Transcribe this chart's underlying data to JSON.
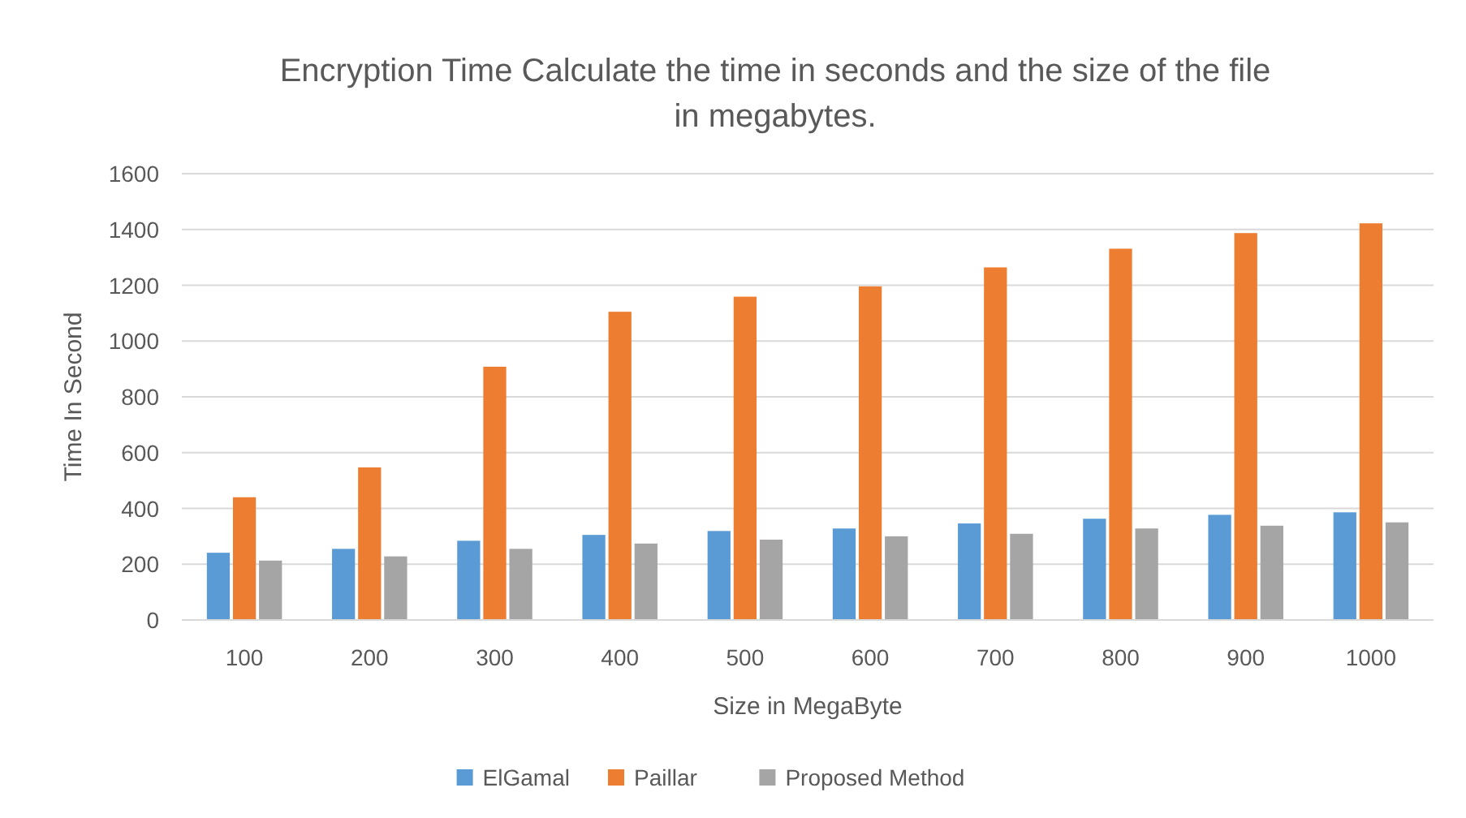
{
  "chart_data": {
    "type": "bar",
    "title": "Encryption Time Calculate the time in seconds and the size of the file in megabytes.",
    "xlabel": "Size in MegaByte",
    "ylabel": "Time In Second",
    "categories": [
      "100",
      "200",
      "300",
      "400",
      "500",
      "600",
      "700",
      "800",
      "900",
      "1000"
    ],
    "series": [
      {
        "name": "ElGamal",
        "color": "#5b9bd5",
        "values": [
          241,
          255,
          284,
          305,
          319,
          328,
          346,
          363,
          377,
          386
        ]
      },
      {
        "name": "Paillar",
        "color": "#ed7d31",
        "values": [
          440,
          547,
          908,
          1105,
          1159,
          1196,
          1264,
          1331,
          1387,
          1422
        ]
      },
      {
        "name": "Proposed Method",
        "color": "#a5a5a5",
        "values": [
          213,
          228,
          255,
          274,
          288,
          300,
          309,
          328,
          338,
          350
        ]
      }
    ],
    "ylim": [
      0,
      1600
    ],
    "yticks": [
      0,
      200,
      400,
      600,
      800,
      1000,
      1200,
      1400,
      1600
    ],
    "grid": "y",
    "legend": "bottom"
  }
}
